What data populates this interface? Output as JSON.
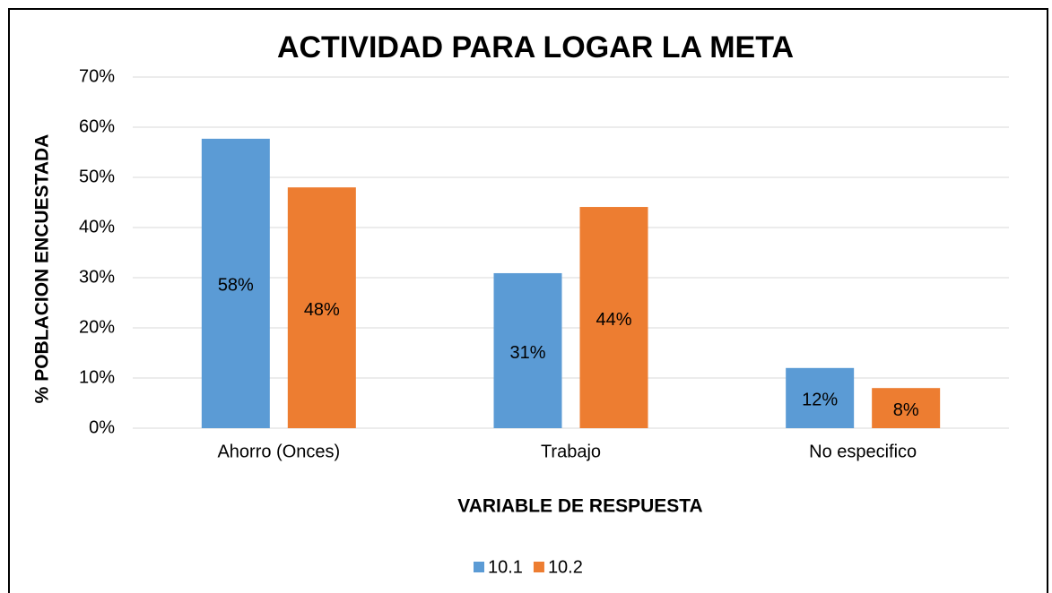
{
  "chart_data": {
    "type": "bar",
    "title": "ACTIVIDAD PARA LOGAR LA META",
    "x_label": "VARIABLE DE RESPUESTA",
    "y_label": "% POBLACION ENCUESTADA",
    "categories": [
      "Ahorro (Onces)",
      "Trabajo",
      "No especifico"
    ],
    "series": [
      {
        "name": "10.1",
        "color": "#5b9bd5",
        "values": [
          57.7,
          30.9,
          12
        ],
        "value_labels": [
          "58%",
          "31%",
          "12%"
        ]
      },
      {
        "name": "10.2",
        "color": "#ed7d31",
        "values": [
          48,
          44.1,
          8
        ],
        "value_labels": [
          "48%",
          "44%",
          "8%"
        ]
      }
    ],
    "ylim": [
      0,
      70
    ],
    "yticks": [
      {
        "value": 0,
        "label": "0%"
      },
      {
        "value": 10,
        "label": "10%"
      },
      {
        "value": 20,
        "label": "20%"
      },
      {
        "value": 30,
        "label": "30%"
      },
      {
        "value": 40,
        "label": "40%"
      },
      {
        "value": 50,
        "label": "50%"
      },
      {
        "value": 60,
        "label": "60%"
      },
      {
        "value": 70,
        "label": "70%"
      }
    ],
    "grid": true,
    "legend": "bottom"
  }
}
